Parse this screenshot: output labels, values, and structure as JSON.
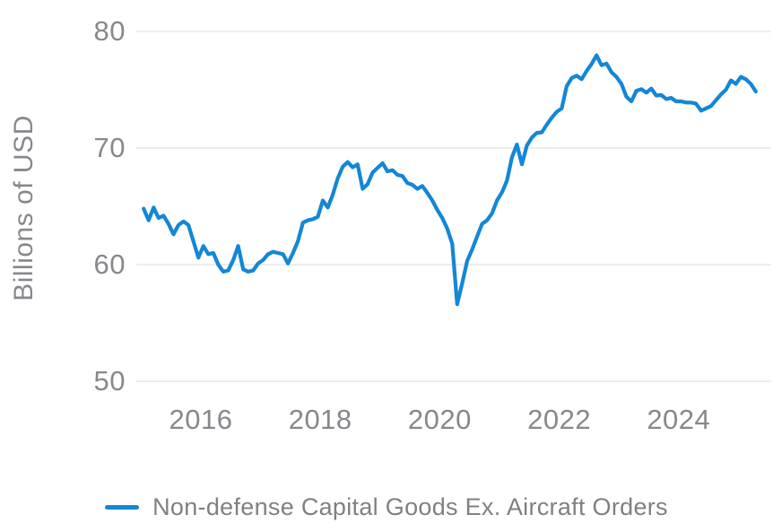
{
  "chart": {
    "y_axis_label": "Billions of USD",
    "legend": {
      "label": "Non-defense Capital Goods Ex. Aircraft Orders"
    },
    "colors": {
      "line": "#1486d6",
      "gridline": "#ededed",
      "tick_text": "#87888c",
      "axis_label_text": "#87888c",
      "legend_text": "#7f8084",
      "background": "#ffffff"
    }
  },
  "chart_data": {
    "type": "line",
    "title": "",
    "xlabel": "",
    "ylabel": "Billions of USD",
    "x_unit": "month",
    "x_range": [
      "2015-01",
      "2025-04"
    ],
    "yticks": [
      80,
      70,
      60,
      50
    ],
    "ytick_labels": [
      "80",
      "70",
      "60",
      "50"
    ],
    "xticks": [
      2016,
      2018,
      2020,
      2022,
      2024
    ],
    "xtick_labels": [
      "2016",
      "2018",
      "2020",
      "2022",
      "2024"
    ],
    "ylim": [
      50,
      80
    ],
    "grid": "horizontal",
    "legend_position": "bottom-center",
    "series": [
      {
        "name": "Non-defense Capital Goods Ex. Aircraft Orders",
        "start": "2015-01",
        "frequency": "monthly",
        "values": [
          64.8,
          63.8,
          64.9,
          64.0,
          64.2,
          63.5,
          62.6,
          63.4,
          63.7,
          63.4,
          62.0,
          60.6,
          61.6,
          60.9,
          61.0,
          60.0,
          59.4,
          59.5,
          60.4,
          61.6,
          59.6,
          59.4,
          59.5,
          60.1,
          60.4,
          60.9,
          61.1,
          61.0,
          60.9,
          60.1,
          61.0,
          62.0,
          63.6,
          63.8,
          63.9,
          64.1,
          65.5,
          64.9,
          66.0,
          67.4,
          68.4,
          68.8,
          68.35,
          68.6,
          66.5,
          66.9,
          67.9,
          68.3,
          68.7,
          68.0,
          68.1,
          67.7,
          67.6,
          67.0,
          66.85,
          66.5,
          66.75,
          66.15,
          65.5,
          64.7,
          64.0,
          63.1,
          61.8,
          56.6,
          58.4,
          60.3,
          61.3,
          62.4,
          63.5,
          63.8,
          64.4,
          65.5,
          66.2,
          67.2,
          69.2,
          70.3,
          68.6,
          70.2,
          70.9,
          71.3,
          71.35,
          72.0,
          72.6,
          73.1,
          73.4,
          75.3,
          76.0,
          76.2,
          75.9,
          76.6,
          77.2,
          77.95,
          77.1,
          77.25,
          76.5,
          76.1,
          75.5,
          74.4,
          74.0,
          74.9,
          75.05,
          74.75,
          75.1,
          74.5,
          74.55,
          74.2,
          74.3,
          74.0,
          74.0,
          73.9,
          73.9,
          73.8,
          73.2,
          73.4,
          73.6,
          74.1,
          74.6,
          75.0,
          75.8,
          75.5,
          76.1,
          75.9,
          75.5,
          74.85
        ]
      }
    ]
  },
  "layout_note": "monthly line chart, gridlines at 50/60/70/80, legend centered below plot"
}
